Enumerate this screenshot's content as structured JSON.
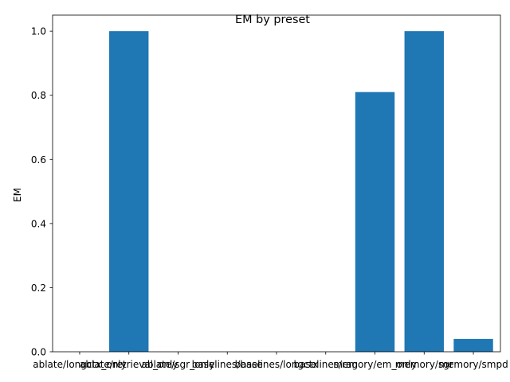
{
  "chart_data": {
    "type": "bar",
    "title": "EM by preset",
    "xlabel": "",
    "ylabel": "EM",
    "ylim": [
      0,
      1.05
    ],
    "yticks": [
      "0.0",
      "0.2",
      "0.4",
      "0.6",
      "0.8",
      "1.0"
    ],
    "categories": [
      "ablate/longctx_only",
      "ablate/retrieval_only",
      "ablate/sgr_only",
      "baselines/base",
      "baselines/longctx",
      "baselines/rag",
      "memory/em_only",
      "memory/sgr",
      "memory/smpd"
    ],
    "values": [
      0,
      1.0,
      0,
      0,
      0,
      0,
      0.81,
      1.0,
      0.04
    ],
    "bar_color": "#1f77b4",
    "grid": false,
    "legend": "none"
  }
}
